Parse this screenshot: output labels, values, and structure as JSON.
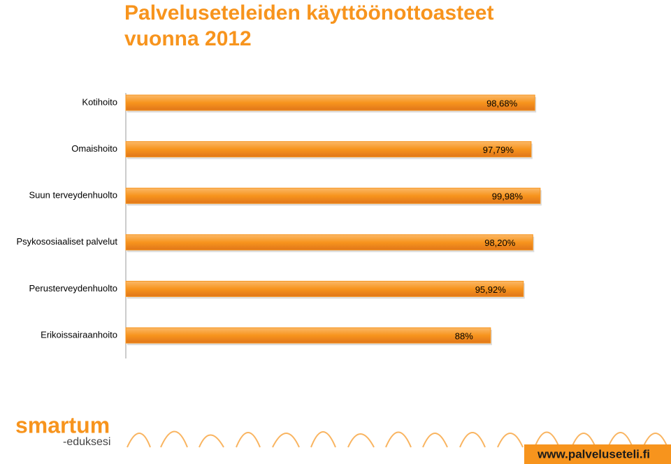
{
  "chart_data": {
    "type": "barh",
    "title": "Palveluseteleiden käyttöönottoasteet vuonna 2012",
    "categories": [
      "Kotihoito",
      "Omaishoito",
      "Suun terveydenhuolto",
      "Psykososiaaliset palvelut",
      "Perusterveydenhuolto",
      "Erikoissairaanhoito"
    ],
    "values": [
      98.68,
      97.79,
      99.98,
      98.2,
      95.92,
      88
    ],
    "value_labels": [
      "98,68%",
      "97,79%",
      "99,98%",
      "98,20%",
      "95,92%",
      "88%"
    ],
    "color": "#f7941d",
    "xlim": [
      0,
      100
    ]
  },
  "footer": {
    "logo": "smartum",
    "logo_sub": "-eduksesi",
    "url": "www.palveluseteli.fi"
  }
}
